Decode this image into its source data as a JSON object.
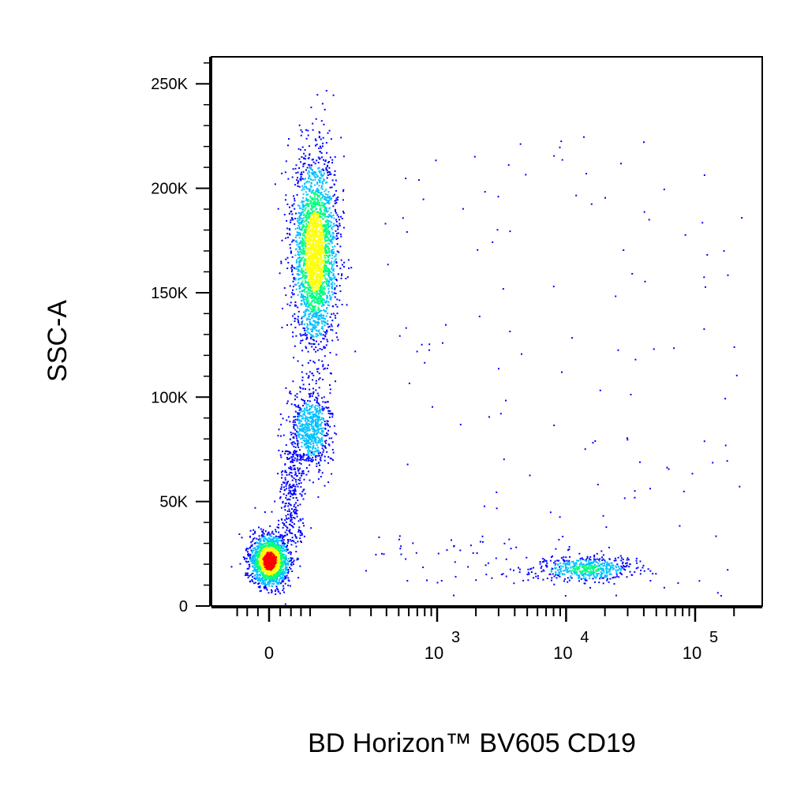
{
  "chart_data": {
    "type": "scatter",
    "title": "",
    "xlabel": "BD Horizon™ BV605  CD19",
    "ylabel": "SSC-A",
    "x_scale": "biexponential",
    "x_ticks": [
      {
        "value": 0,
        "base": "0",
        "exp": ""
      },
      {
        "value": 1000,
        "base": "10",
        "exp": "3"
      },
      {
        "value": 10000,
        "base": "10",
        "exp": "4"
      },
      {
        "value": 100000,
        "base": "10",
        "exp": "5"
      }
    ],
    "y_ticks": [
      {
        "value": 0,
        "label": "0"
      },
      {
        "value": 50000,
        "label": "50K"
      },
      {
        "value": 100000,
        "label": "100K"
      },
      {
        "value": 150000,
        "label": "150K"
      },
      {
        "value": 200000,
        "label": "200K"
      },
      {
        "value": 250000,
        "label": "250K"
      }
    ],
    "ylim": [
      0,
      262144
    ],
    "xlim": [
      -150,
      262144
    ],
    "grid": false,
    "colormap": [
      "#0000ff",
      "#00c0ff",
      "#00ff80",
      "#ffff00",
      "#ff0000"
    ],
    "populations": [
      {
        "name": "",
        "x_center": 0,
        "y_center": 22000,
        "density": "very high"
      },
      {
        "name": "",
        "x_center": 80,
        "y_center": 85000,
        "density": "medium"
      },
      {
        "name": "",
        "x_center": 90,
        "y_center": 170000,
        "density": "high"
      },
      {
        "name": "",
        "x_center": 14000,
        "y_center": 18000,
        "density": "medium"
      }
    ]
  }
}
